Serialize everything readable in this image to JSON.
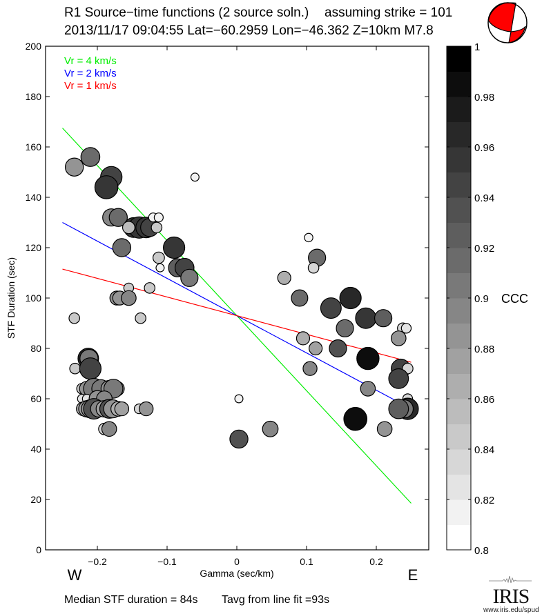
{
  "header": {
    "title": "R1 Source−time functions (2 source soln.)",
    "strike_label": "assuming strike = 101",
    "event_line": "2013/11/17 09:04:55  Lat=−60.2959 Lon=−46.362  Z=10km  M7.8",
    "beachball": {
      "icon": "focal-mechanism-beachball",
      "fill_color": "#ff0000"
    }
  },
  "footer": {
    "median_text": "Median STF duration = 84s",
    "tavg_text": "Tavg from line fit =93s",
    "logo_text": "IRIS",
    "logo_url": "www.iris.edu/spud"
  },
  "chart_data": {
    "type": "scatter",
    "title": "R1 Source-time functions (2 source soln.)",
    "xlabel": "Gamma (sec/km)",
    "ylabel": "STF Duration (sec)",
    "xlim": [
      -0.27,
      0.275
    ],
    "ylim": [
      0,
      200
    ],
    "xticks": [
      -0.2,
      -0.1,
      0,
      0.1,
      0.2
    ],
    "xtick_labels": [
      "−0.2",
      "−0.1",
      "0",
      "0.1",
      "0.2"
    ],
    "yticks": [
      0,
      20,
      40,
      60,
      80,
      100,
      120,
      140,
      160,
      180,
      200
    ],
    "ytick_labels": [
      "0",
      "20",
      "40",
      "60",
      "80",
      "100",
      "120",
      "140",
      "160",
      "180",
      "200"
    ],
    "direction_labels": {
      "west": "W",
      "east": "E"
    },
    "grid": false,
    "lines": [
      {
        "name": "Vr = 4 km/s",
        "color": "#00ee00",
        "x": [
          -0.25,
          0.25
        ],
        "y": [
          167.5,
          18.5
        ]
      },
      {
        "name": "Vr = 2 km/s",
        "color": "#0000ff",
        "x": [
          -0.25,
          0.25
        ],
        "y": [
          130,
          56
        ]
      },
      {
        "name": "Vr = 1 km/s",
        "color": "#ff0000",
        "x": [
          -0.25,
          0.25
        ],
        "y": [
          111.5,
          74.5
        ]
      }
    ],
    "legend": {
      "placement": "top-left",
      "entries": [
        "Vr = 4 km/s",
        "Vr = 2 km/s",
        "Vr = 1 km/s"
      ]
    },
    "colorbar": {
      "label": "CCC",
      "range": [
        0.8,
        1.0
      ],
      "ticks": [
        0.8,
        0.82,
        0.84,
        0.86,
        0.88,
        0.9,
        0.92,
        0.94,
        0.96,
        0.98,
        1
      ],
      "tick_labels": [
        "0.8",
        "0.82",
        "0.84",
        "0.86",
        "0.88",
        "0.9",
        "0.92",
        "0.94",
        "0.96",
        "0.98",
        "1"
      ],
      "bands": 20
    },
    "points_fields": [
      "gamma",
      "duration",
      "ccc",
      "size_rel"
    ],
    "points": [
      [
        -0.233,
        152,
        0.88,
        0.8
      ],
      [
        -0.21,
        156,
        0.91,
        0.85
      ],
      [
        -0.18,
        148,
        0.945,
        1.0
      ],
      [
        -0.187,
        144,
        0.95,
        1.1
      ],
      [
        -0.18,
        132,
        0.89,
        0.75
      ],
      [
        -0.17,
        132,
        0.91,
        0.8
      ],
      [
        -0.152,
        128,
        0.86,
        0.5
      ],
      [
        -0.148,
        128,
        0.95,
        0.9
      ],
      [
        -0.14,
        128,
        0.955,
        1.0
      ],
      [
        -0.13,
        128,
        0.95,
        0.95
      ],
      [
        -0.125,
        128,
        0.94,
        0.8
      ],
      [
        -0.12,
        132,
        0.81,
        0.25
      ],
      [
        -0.112,
        132,
        0.81,
        0.25
      ],
      [
        -0.115,
        128,
        0.84,
        0.35
      ],
      [
        -0.155,
        128,
        0.85,
        0.45
      ],
      [
        -0.165,
        120,
        0.91,
        0.8
      ],
      [
        -0.09,
        120,
        0.95,
        1.0
      ],
      [
        -0.112,
        116,
        0.84,
        0.4
      ],
      [
        -0.11,
        112,
        0.81,
        0.2
      ],
      [
        -0.085,
        112,
        0.92,
        0.8
      ],
      [
        -0.075,
        112,
        0.94,
        0.85
      ],
      [
        -0.068,
        108,
        0.9,
        0.75
      ],
      [
        -0.06,
        148,
        0.81,
        0.2
      ],
      [
        -0.155,
        104,
        0.84,
        0.3
      ],
      [
        -0.125,
        104,
        0.84,
        0.35
      ],
      [
        -0.172,
        100,
        0.88,
        0.55
      ],
      [
        -0.168,
        100,
        0.88,
        0.55
      ],
      [
        -0.155,
        100,
        0.89,
        0.6
      ],
      [
        -0.233,
        92,
        0.84,
        0.35
      ],
      [
        -0.138,
        92,
        0.84,
        0.35
      ],
      [
        -0.232,
        72,
        0.84,
        0.35
      ],
      [
        -0.213,
        76,
        0.96,
        0.95
      ],
      [
        -0.212,
        76,
        0.9,
        0.8
      ],
      [
        -0.21,
        72,
        0.94,
        1.0
      ],
      [
        -0.222,
        64,
        0.84,
        0.35
      ],
      [
        -0.215,
        64,
        0.88,
        0.6
      ],
      [
        -0.205,
        64,
        0.9,
        0.95
      ],
      [
        -0.195,
        64,
        0.9,
        0.8
      ],
      [
        -0.183,
        64,
        0.88,
        0.7
      ],
      [
        -0.172,
        64,
        0.87,
        0.6
      ],
      [
        -0.177,
        64,
        0.9,
        0.85
      ],
      [
        -0.222,
        60,
        0.82,
        0.25
      ],
      [
        -0.215,
        60,
        0.82,
        0.25
      ],
      [
        -0.2,
        60,
        0.88,
        0.7
      ],
      [
        -0.19,
        60,
        0.89,
        0.65
      ],
      [
        -0.22,
        56,
        0.86,
        0.55
      ],
      [
        -0.215,
        56,
        0.87,
        0.7
      ],
      [
        -0.21,
        56,
        0.88,
        0.8
      ],
      [
        -0.205,
        56,
        0.93,
        0.95
      ],
      [
        -0.198,
        56,
        0.89,
        0.7
      ],
      [
        -0.19,
        56,
        0.87,
        0.7
      ],
      [
        -0.183,
        56,
        0.93,
        0.85
      ],
      [
        -0.178,
        56,
        0.88,
        0.8
      ],
      [
        -0.17,
        56,
        0.86,
        0.6
      ],
      [
        -0.165,
        56,
        0.87,
        0.55
      ],
      [
        -0.14,
        56,
        0.83,
        0.3
      ],
      [
        -0.13,
        56,
        0.88,
        0.55
      ],
      [
        -0.19,
        48,
        0.83,
        0.4
      ],
      [
        -0.183,
        48,
        0.89,
        0.6
      ],
      [
        0.003,
        60,
        0.81,
        0.2
      ],
      [
        0.003,
        44,
        0.93,
        0.8
      ],
      [
        0.048,
        48,
        0.89,
        0.65
      ],
      [
        0.103,
        124,
        0.81,
        0.22
      ],
      [
        0.115,
        116,
        0.91,
        0.75
      ],
      [
        0.11,
        112,
        0.83,
        0.35
      ],
      [
        0.068,
        108,
        0.86,
        0.5
      ],
      [
        0.09,
        100,
        0.91,
        0.7
      ],
      [
        0.163,
        100,
        0.96,
        1.0
      ],
      [
        0.135,
        96,
        0.94,
        0.95
      ],
      [
        0.185,
        92,
        0.95,
        0.95
      ],
      [
        0.21,
        92,
        0.925,
        0.75
      ],
      [
        0.155,
        88,
        0.91,
        0.75
      ],
      [
        0.238,
        88,
        0.83,
        0.35
      ],
      [
        0.243,
        88,
        0.82,
        0.3
      ],
      [
        0.232,
        84,
        0.88,
        0.6
      ],
      [
        0.095,
        84,
        0.86,
        0.5
      ],
      [
        0.113,
        80,
        0.87,
        0.5
      ],
      [
        0.145,
        80,
        0.93,
        0.75
      ],
      [
        0.188,
        76,
        0.98,
        1.05
      ],
      [
        0.235,
        72,
        0.94,
        0.85
      ],
      [
        0.245,
        72,
        0.83,
        0.35
      ],
      [
        0.232,
        68,
        0.94,
        0.9
      ],
      [
        0.105,
        72,
        0.89,
        0.55
      ],
      [
        0.188,
        64,
        0.89,
        0.6
      ],
      [
        0.245,
        60,
        0.83,
        0.3
      ],
      [
        0.245,
        56,
        0.96,
        1.0
      ],
      [
        0.24,
        56,
        0.9,
        0.8
      ],
      [
        0.232,
        56,
        0.92,
        0.9
      ],
      [
        0.17,
        52,
        0.98,
        1.1
      ],
      [
        0.212,
        48,
        0.88,
        0.6
      ]
    ]
  }
}
